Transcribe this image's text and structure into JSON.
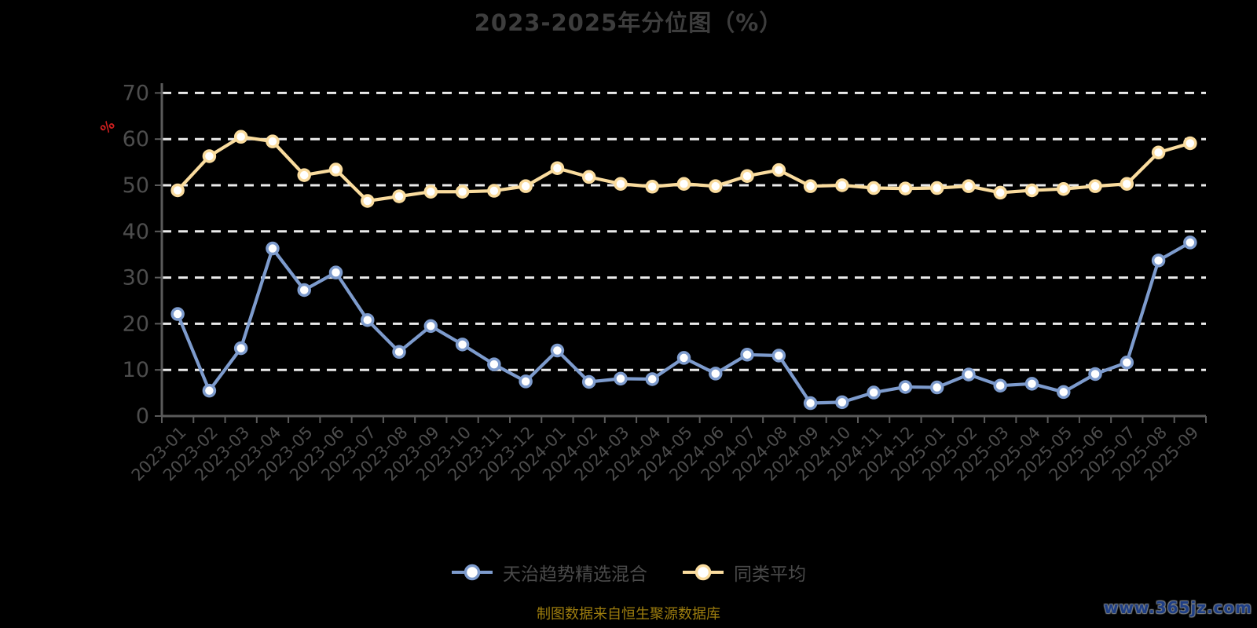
{
  "title": "2023-2025年分位图（%）",
  "subtitle_source": "制图数据来自恒生聚源数据库",
  "watermark": "www.365jz.com",
  "y_axis_unit_label": "%",
  "legend": {
    "items": [
      {
        "label": "天治趋势精选混合",
        "color": "#7d9bcd"
      },
      {
        "label": "同类平均",
        "color": "#fadc9e"
      }
    ]
  },
  "colors": {
    "background": "#000000",
    "title_text": "#3d3d3d",
    "axis_line": "#5a5a5a",
    "axis_label": "#4d4d4d",
    "gridline": "#ebebeb",
    "unit_label": "#cf1f1f",
    "legend_text": "#4a4a4a",
    "source_text": "#9d7d0e",
    "watermark_text": "#1e3e85",
    "marker_fill": "#ffffff"
  },
  "chart_data": {
    "type": "line",
    "title": "2023-2025年分位图（%）",
    "xlabel": "",
    "ylabel": "%",
    "ylim": [
      0,
      70
    ],
    "yticks": [
      0,
      10,
      20,
      30,
      40,
      50,
      60,
      70
    ],
    "grid": "horizontal-dashed",
    "legend_position": "bottom",
    "categories": [
      "2023-01",
      "2023-02",
      "2023-03",
      "2023-04",
      "2023-05",
      "2023-06",
      "2023-07",
      "2023-08",
      "2023-09",
      "2023-10",
      "2023-11",
      "2023-12",
      "2024-01",
      "2024-02",
      "2024-03",
      "2024-04",
      "2024-05",
      "2024-06",
      "2024-07",
      "2024-08",
      "2024-09",
      "2024-10",
      "2024-11",
      "2024-12",
      "2025-01",
      "2025-02",
      "2025-03",
      "2025-04",
      "2025-05",
      "2025-06",
      "2025-07",
      "2025-08",
      "2025-09"
    ],
    "series": [
      {
        "name": "天治趋势精选混合",
        "color": "#7d9bcd",
        "values": [
          22.1,
          5.5,
          14.7,
          36.3,
          27.3,
          31.1,
          20.8,
          13.9,
          19.5,
          15.5,
          11.2,
          7.5,
          14.2,
          7.4,
          8.1,
          8.0,
          12.6,
          9.2,
          13.3,
          13.1,
          2.8,
          3.0,
          5.1,
          6.3,
          6.2,
          9.0,
          6.6,
          7.0,
          5.2,
          9.1,
          11.6,
          33.7,
          37.6
        ]
      },
      {
        "name": "同类平均",
        "color": "#fadc9e",
        "values": [
          48.9,
          56.3,
          60.5,
          59.5,
          52.2,
          53.4,
          46.6,
          47.6,
          48.6,
          48.6,
          48.8,
          49.8,
          53.7,
          51.8,
          50.3,
          49.7,
          50.3,
          49.8,
          52.0,
          53.3,
          49.8,
          50.0,
          49.4,
          49.3,
          49.4,
          49.8,
          48.4,
          48.9,
          49.2,
          49.8,
          50.3,
          57.1,
          59.1
        ]
      }
    ]
  }
}
